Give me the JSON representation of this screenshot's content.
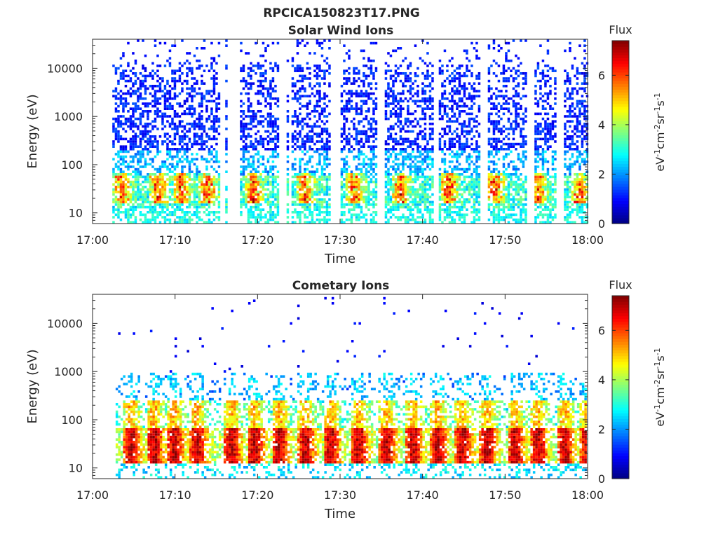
{
  "figure": {
    "file_title": "RPCICA150823T17.PNG"
  },
  "chart_data": [
    {
      "type": "heatmap",
      "title": "Solar Wind Ions",
      "xlabel": "Time",
      "ylabel": "Energy (eV)",
      "x_range": [
        "17:00",
        "18:00"
      ],
      "x_ticks": [
        "17:00",
        "17:10",
        "17:20",
        "17:30",
        "17:40",
        "17:50",
        "18:00"
      ],
      "y_scale": "log",
      "y_range": [
        6,
        40000
      ],
      "y_ticks": [
        10,
        100,
        1000,
        10000
      ],
      "y_tick_labels": [
        "10",
        "100",
        "1000",
        "10000"
      ],
      "colorbar": {
        "title": "Flux",
        "unit_base": "eV",
        "unit_parts": [
          "-1",
          "cm",
          "-2",
          "sr",
          "-1",
          "s",
          "-1"
        ],
        "range": [
          0,
          7.4
        ],
        "ticks": [
          0,
          2,
          4,
          6
        ],
        "tick_labels": [
          "0",
          "2",
          "4",
          "6"
        ],
        "colormap": "jet"
      },
      "population": "solar-wind",
      "sweep_start_minutes": [
        2.4,
        6.8,
        9.6,
        12.8,
        18.4,
        24.6,
        30.6,
        36.2,
        42.0,
        47.6,
        52.8,
        57.8
      ],
      "data_gaps_minutes": [
        [
          15.3,
          17.8
        ],
        [
          22.4,
          23.9
        ],
        [
          28.6,
          30.0
        ],
        [
          34.4,
          35.2
        ],
        [
          40.8,
          41.8
        ],
        [
          46.9,
          47.9
        ],
        [
          52.6,
          53.5
        ],
        [
          56.0,
          57.0
        ]
      ],
      "peak_energy_eV": 30,
      "peak_flux": 5.5
    },
    {
      "type": "heatmap",
      "title": "Cometary Ions",
      "xlabel": "Time",
      "ylabel": "Energy (eV)",
      "x_range": [
        "17:00",
        "18:00"
      ],
      "x_ticks": [
        "17:00",
        "17:10",
        "17:20",
        "17:30",
        "17:40",
        "17:50",
        "18:00"
      ],
      "y_scale": "log",
      "y_range": [
        6,
        40000
      ],
      "y_ticks": [
        10,
        100,
        1000,
        10000
      ],
      "y_tick_labels": [
        "10",
        "100",
        "1000",
        "10000"
      ],
      "colorbar": {
        "title": "Flux",
        "unit_base": "eV",
        "unit_parts": [
          "-1",
          "cm",
          "-2",
          "sr",
          "-1",
          "s",
          "-1"
        ],
        "range": [
          0,
          7.4
        ],
        "ticks": [
          0,
          2,
          4,
          6
        ],
        "tick_labels": [
          "0",
          "2",
          "4",
          "6"
        ],
        "colormap": "jet"
      },
      "population": "cometary",
      "sweep_start_minutes": [
        3.6,
        6.4,
        8.9,
        11.6,
        15.8,
        18.6,
        21.6,
        24.8,
        27.8,
        31.2,
        34.6,
        37.8,
        40.8,
        43.8,
        46.8,
        50.2,
        53.0,
        56.2,
        59.0
      ],
      "peak_energy_eV": 30,
      "peak_flux": 7.2
    }
  ]
}
